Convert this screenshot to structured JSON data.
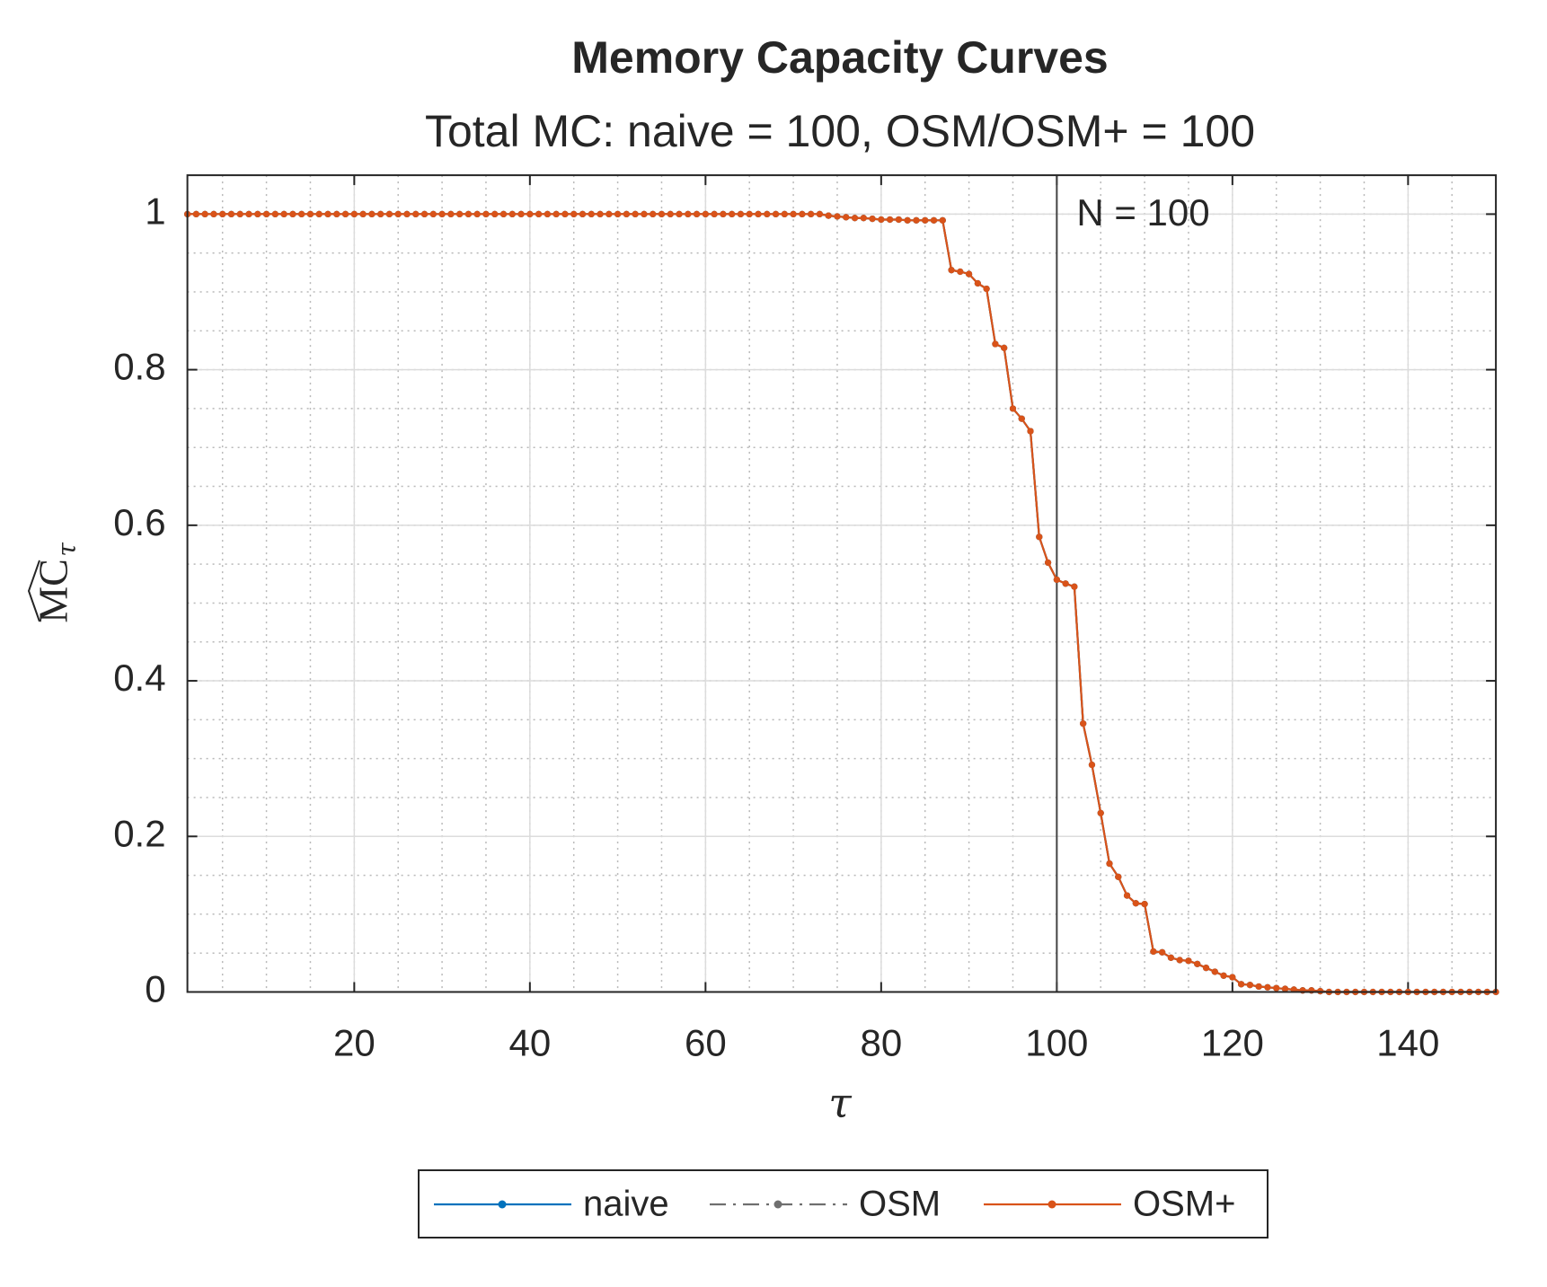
{
  "chart_data": {
    "type": "line",
    "title": "Memory Capacity Curves",
    "subtitle": "Total MC:  naive = 100,  OSM/OSM+ = 100",
    "xlabel": "τ",
    "ylabel": "MC",
    "ylabel_sub": "τ",
    "x": [
      1,
      2,
      3,
      4,
      5,
      6,
      7,
      8,
      9,
      10,
      11,
      12,
      13,
      14,
      15,
      16,
      17,
      18,
      19,
      20,
      21,
      22,
      23,
      24,
      25,
      26,
      27,
      28,
      29,
      30,
      31,
      32,
      33,
      34,
      35,
      36,
      37,
      38,
      39,
      40,
      41,
      42,
      43,
      44,
      45,
      46,
      47,
      48,
      49,
      50,
      51,
      52,
      53,
      54,
      55,
      56,
      57,
      58,
      59,
      60,
      61,
      62,
      63,
      64,
      65,
      66,
      67,
      68,
      69,
      70,
      71,
      72,
      73,
      74,
      75,
      76,
      77,
      78,
      79,
      80,
      81,
      82,
      83,
      84,
      85,
      86,
      87,
      88,
      89,
      90,
      91,
      92,
      93,
      94,
      95,
      96,
      97,
      98,
      99,
      100,
      101,
      102,
      103,
      104,
      105,
      106,
      107,
      108,
      109,
      110,
      111,
      112,
      113,
      114,
      115,
      116,
      117,
      118,
      119,
      120,
      121,
      122,
      123,
      124,
      125,
      126,
      127,
      128,
      129,
      130,
      131,
      132,
      133,
      134,
      135,
      136,
      137,
      138,
      139,
      140,
      141,
      142,
      143,
      144,
      145,
      146,
      147,
      148,
      149,
      150
    ],
    "series": [
      {
        "name": "naive",
        "color": "#0072bd",
        "linestyle": "solid",
        "values": [
          1,
          1,
          1,
          1,
          1,
          1,
          1,
          1,
          1,
          1,
          1,
          1,
          1,
          1,
          1,
          1,
          1,
          1,
          1,
          1,
          1,
          1,
          1,
          1,
          1,
          1,
          1,
          1,
          1,
          1,
          1,
          1,
          1,
          1,
          1,
          1,
          1,
          1,
          1,
          1,
          1,
          1,
          1,
          1,
          1,
          1,
          1,
          1,
          1,
          1,
          1,
          1,
          1,
          1,
          1,
          1,
          1,
          1,
          1,
          1,
          1,
          1,
          1,
          1,
          1,
          1,
          1,
          1,
          1,
          1,
          1,
          1,
          1,
          0.998,
          0.997,
          0.996,
          0.995,
          0.995,
          0.994,
          0.993,
          0.993,
          0.993,
          0.992,
          0.992,
          0.992,
          0.992,
          0.992,
          0.928,
          0.926,
          0.923,
          0.911,
          0.904,
          0.833,
          0.828,
          0.75,
          0.737,
          0.721,
          0.585,
          0.552,
          0.53,
          0.525,
          0.521,
          0.345,
          0.292,
          0.23,
          0.165,
          0.148,
          0.124,
          0.114,
          0.113,
          0.052,
          0.051,
          0.044,
          0.041,
          0.04,
          0.036,
          0.031,
          0.026,
          0.021,
          0.019,
          0.01,
          0.009,
          0.007,
          0.006,
          0.005,
          0.004,
          0.003,
          0.002,
          0.002,
          0.001,
          0,
          0,
          0,
          0,
          0,
          0,
          0,
          0,
          0,
          0,
          0,
          0,
          0,
          0,
          0,
          0,
          0,
          0,
          0,
          0
        ]
      },
      {
        "name": "OSM",
        "color": "#6f6f6f",
        "linestyle": "dashdot",
        "values": [
          1,
          1,
          1,
          1,
          1,
          1,
          1,
          1,
          1,
          1,
          1,
          1,
          1,
          1,
          1,
          1,
          1,
          1,
          1,
          1,
          1,
          1,
          1,
          1,
          1,
          1,
          1,
          1,
          1,
          1,
          1,
          1,
          1,
          1,
          1,
          1,
          1,
          1,
          1,
          1,
          1,
          1,
          1,
          1,
          1,
          1,
          1,
          1,
          1,
          1,
          1,
          1,
          1,
          1,
          1,
          1,
          1,
          1,
          1,
          1,
          1,
          1,
          1,
          1,
          1,
          1,
          1,
          1,
          1,
          1,
          1,
          1,
          1,
          0.998,
          0.997,
          0.996,
          0.995,
          0.995,
          0.994,
          0.993,
          0.993,
          0.993,
          0.992,
          0.992,
          0.992,
          0.992,
          0.992,
          0.928,
          0.926,
          0.923,
          0.911,
          0.904,
          0.833,
          0.828,
          0.75,
          0.737,
          0.721,
          0.585,
          0.552,
          0.53,
          0.525,
          0.521,
          0.345,
          0.292,
          0.23,
          0.165,
          0.148,
          0.124,
          0.114,
          0.113,
          0.052,
          0.051,
          0.044,
          0.041,
          0.04,
          0.036,
          0.031,
          0.026,
          0.021,
          0.019,
          0.01,
          0.009,
          0.007,
          0.006,
          0.005,
          0.004,
          0.003,
          0.002,
          0.002,
          0.001,
          0,
          0,
          0,
          0,
          0,
          0,
          0,
          0,
          0,
          0,
          0,
          0,
          0,
          0,
          0,
          0,
          0,
          0,
          0,
          0
        ]
      },
      {
        "name": "OSM+",
        "color": "#d95319",
        "linestyle": "solid",
        "values": [
          1,
          1,
          1,
          1,
          1,
          1,
          1,
          1,
          1,
          1,
          1,
          1,
          1,
          1,
          1,
          1,
          1,
          1,
          1,
          1,
          1,
          1,
          1,
          1,
          1,
          1,
          1,
          1,
          1,
          1,
          1,
          1,
          1,
          1,
          1,
          1,
          1,
          1,
          1,
          1,
          1,
          1,
          1,
          1,
          1,
          1,
          1,
          1,
          1,
          1,
          1,
          1,
          1,
          1,
          1,
          1,
          1,
          1,
          1,
          1,
          1,
          1,
          1,
          1,
          1,
          1,
          1,
          1,
          1,
          1,
          1,
          1,
          1,
          0.998,
          0.997,
          0.996,
          0.995,
          0.995,
          0.994,
          0.993,
          0.993,
          0.993,
          0.992,
          0.992,
          0.992,
          0.992,
          0.992,
          0.928,
          0.926,
          0.923,
          0.911,
          0.904,
          0.833,
          0.828,
          0.75,
          0.737,
          0.721,
          0.585,
          0.552,
          0.53,
          0.525,
          0.521,
          0.345,
          0.292,
          0.23,
          0.165,
          0.148,
          0.124,
          0.114,
          0.113,
          0.052,
          0.051,
          0.044,
          0.041,
          0.04,
          0.036,
          0.031,
          0.026,
          0.021,
          0.019,
          0.01,
          0.009,
          0.007,
          0.006,
          0.005,
          0.004,
          0.003,
          0.002,
          0.002,
          0.001,
          0,
          0,
          0,
          0,
          0,
          0,
          0,
          0,
          0,
          0,
          0,
          0,
          0,
          0,
          0,
          0,
          0,
          0,
          0,
          0
        ]
      }
    ],
    "xlim": [
      1,
      150
    ],
    "ylim": [
      0,
      1.05
    ],
    "xticks": [
      20,
      40,
      60,
      80,
      100,
      120,
      140
    ],
    "yticks": [
      0,
      0.2,
      0.4,
      0.6,
      0.8,
      1
    ],
    "grid": true,
    "minor_grid": true,
    "vline": {
      "x": 100,
      "label": "N = 100",
      "color": "#444444"
    },
    "legend": "bottom"
  }
}
